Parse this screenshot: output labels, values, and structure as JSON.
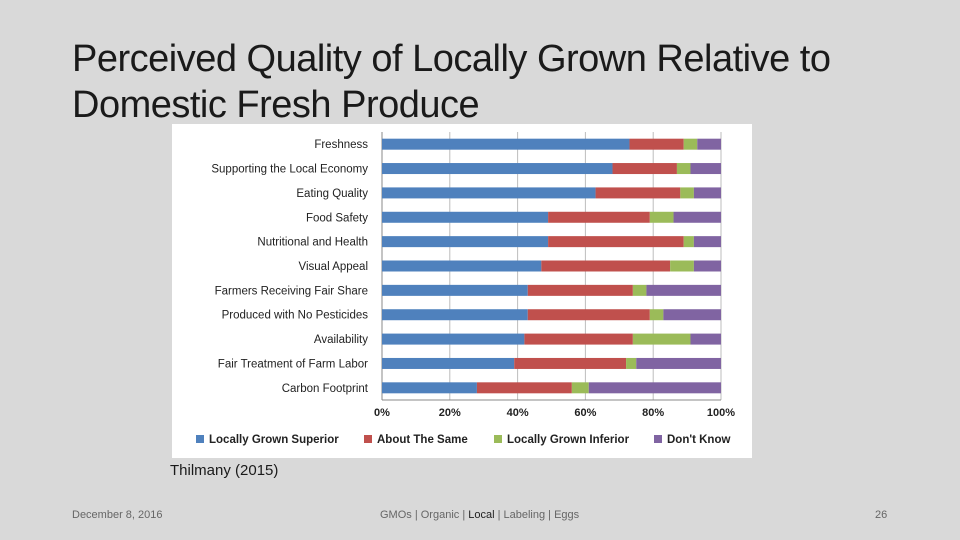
{
  "slide": {
    "title_line1": "Perceived Quality of Locally Grown Relative to",
    "title_line2": "Domestic Fresh Produce",
    "source": "Thilmany (2015)",
    "footer_date": "December 8, 2016",
    "footer_topics_a": "GMOs | Organic | ",
    "footer_topics_b": "Local",
    "footer_topics_c": " | Labeling | Eggs",
    "page_number": "26"
  },
  "chart_data": {
    "type": "bar",
    "orientation": "horizontal",
    "stacked": "percent",
    "categories": [
      "Freshness",
      "Supporting the Local Economy",
      "Eating Quality",
      "Food Safety",
      "Nutritional and Health",
      "Visual Appeal",
      "Farmers Receiving Fair Share",
      "Produced with No Pesticides",
      "Availability",
      "Fair Treatment of Farm Labor",
      "Carbon Footprint"
    ],
    "series": [
      {
        "name": "Locally Grown Superior",
        "color": "#4f81bd",
        "values": [
          73,
          68,
          63,
          49,
          49,
          47,
          43,
          43,
          42,
          39,
          28
        ]
      },
      {
        "name": "About The Same",
        "color": "#c0504d",
        "values": [
          16,
          19,
          25,
          30,
          40,
          38,
          31,
          36,
          32,
          33,
          28
        ]
      },
      {
        "name": "Locally Grown Inferior",
        "color": "#9bbb59",
        "values": [
          4,
          4,
          4,
          7,
          3,
          7,
          4,
          4,
          17,
          3,
          5
        ]
      },
      {
        "name": "Don't Know",
        "color": "#8064a2",
        "values": [
          7,
          9,
          8,
          14,
          8,
          8,
          22,
          17,
          9,
          25,
          39
        ]
      }
    ],
    "xlim": [
      0,
      100
    ],
    "xticks": [
      "0%",
      "20%",
      "40%",
      "60%",
      "80%",
      "100%"
    ],
    "legend_position": "bottom",
    "grid": true
  }
}
